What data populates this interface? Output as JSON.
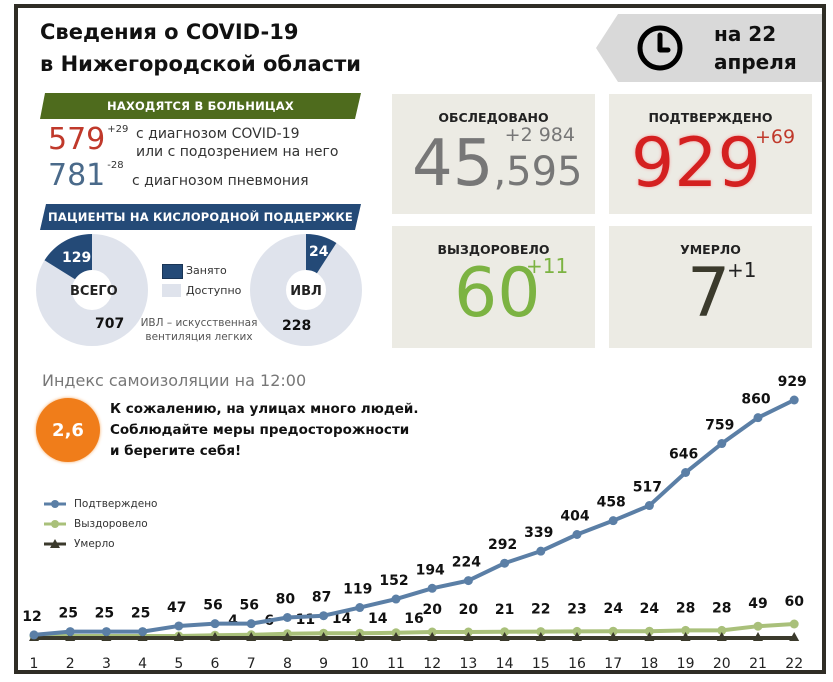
{
  "header": {
    "title_line1": "Сведения о COVID-19",
    "title_line2": "в Нижегородской области",
    "date_line1": "на 22",
    "date_line2": "апреля",
    "date_icon": "clock-icon"
  },
  "hospitals": {
    "band_label": "НАХОДЯТСЯ В БОЛЬНИЦАХ",
    "covid": {
      "value": "579",
      "delta": "+29",
      "color": "#c0392b",
      "desc_line1": "с диагнозом COVID-19",
      "desc_line2": "или с подозрением на него"
    },
    "pneumonia": {
      "value": "781",
      "delta": "-28",
      "color": "#4a6a8a",
      "desc": "с диагнозом пневмония"
    }
  },
  "oxygen": {
    "band_label": "ПАЦИЕНТЫ НА КИСЛОРОДНОЙ ПОДДЕРЖКЕ",
    "total": {
      "center": "ВСЕГО",
      "occupied": "129",
      "available": "707"
    },
    "ventilator": {
      "center": "ИВЛ",
      "occupied": "24",
      "available": "228"
    },
    "legend": {
      "occupied": "Занято",
      "available": "Доступно",
      "occupied_color": "#244a77",
      "available_color": "#dfe3ec"
    },
    "note_line1": "ИВЛ – искусственная",
    "note_line2": "вентиляция легких"
  },
  "cards": {
    "tested": {
      "label": "ОБСЛЕДОВАНО",
      "value_big": "45",
      "value_small": ",595",
      "delta": "+2 984",
      "color": "#777777"
    },
    "confirmed": {
      "label": "ПОДТВЕРЖДЕНО",
      "value": "929",
      "delta": "+69",
      "color": "#d42020"
    },
    "recovered": {
      "label": "ВЫЗДОРОВЕЛО",
      "value": "60",
      "delta": "+11",
      "color": "#7cb342"
    },
    "died": {
      "label": "УМЕРЛО",
      "value": "7",
      "delta": "+1",
      "color": "#3b3a2c"
    }
  },
  "isolation": {
    "title": "Индекс самоизоляции на 12:00",
    "value": "2,6",
    "color": "#f07d1a",
    "message_line1": "К сожалению, на улицах много людей.",
    "message_line2": "Соблюдайте меры предосторожности",
    "message_line3": "и берегите себя!"
  },
  "chart_data": {
    "type": "line",
    "title": "",
    "xlabel": "",
    "ylabel": "",
    "x": [
      1,
      2,
      3,
      4,
      5,
      6,
      7,
      8,
      9,
      10,
      11,
      12,
      13,
      14,
      15,
      16,
      17,
      18,
      19,
      20,
      21,
      22
    ],
    "series": [
      {
        "name": "Подтверждено",
        "color": "#5b7fa6",
        "marker": "circle",
        "values": [
          12,
          25,
          25,
          25,
          47,
          56,
          56,
          80,
          87,
          119,
          152,
          194,
          224,
          292,
          339,
          404,
          458,
          517,
          646,
          759,
          860,
          929
        ]
      },
      {
        "name": "Выздоровело",
        "color": "#a9c07a",
        "marker": "circle",
        "values": [
          0,
          0,
          0,
          0,
          0,
          4,
          6,
          11,
          14,
          14,
          16,
          20,
          20,
          21,
          22,
          23,
          24,
          24,
          28,
          28,
          49,
          60
        ]
      },
      {
        "name": "Умерло",
        "color": "#3b3a2c",
        "marker": "triangle",
        "values": [
          0,
          0,
          0,
          0,
          0,
          0,
          1,
          1,
          1,
          1,
          1,
          1,
          1,
          2,
          2,
          2,
          2,
          3,
          4,
          5,
          6,
          7
        ]
      }
    ],
    "ylim": [
      0,
      1000
    ],
    "grid": false,
    "legend_position": "upper-left"
  }
}
